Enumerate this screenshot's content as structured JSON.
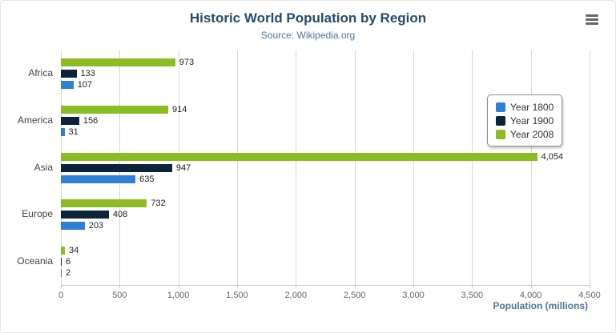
{
  "chart_data": {
    "type": "bar",
    "title": "Historic World Population by Region",
    "subtitle": "Source: Wikipedia.org",
    "xlabel": "Population (millions)",
    "categories": [
      "Africa",
      "America",
      "Asia",
      "Europe",
      "Oceania"
    ],
    "series": [
      {
        "name": "Year 1800",
        "color": "#2f7ed8",
        "values": [
          107,
          31,
          635,
          203,
          2
        ]
      },
      {
        "name": "Year 1900",
        "color": "#0d233a",
        "values": [
          133,
          156,
          947,
          408,
          6
        ]
      },
      {
        "name": "Year 2008",
        "color": "#8bbc21",
        "values": [
          973,
          914,
          4054,
          732,
          34
        ]
      }
    ],
    "xlim": [
      0,
      4500
    ],
    "xtick_step": 500,
    "grid": true,
    "legend_position": "right",
    "legend_labels": [
      "Year 1800",
      "Year 1900",
      "Year 2008"
    ]
  },
  "icons": {
    "menu": "hamburger-menu"
  }
}
